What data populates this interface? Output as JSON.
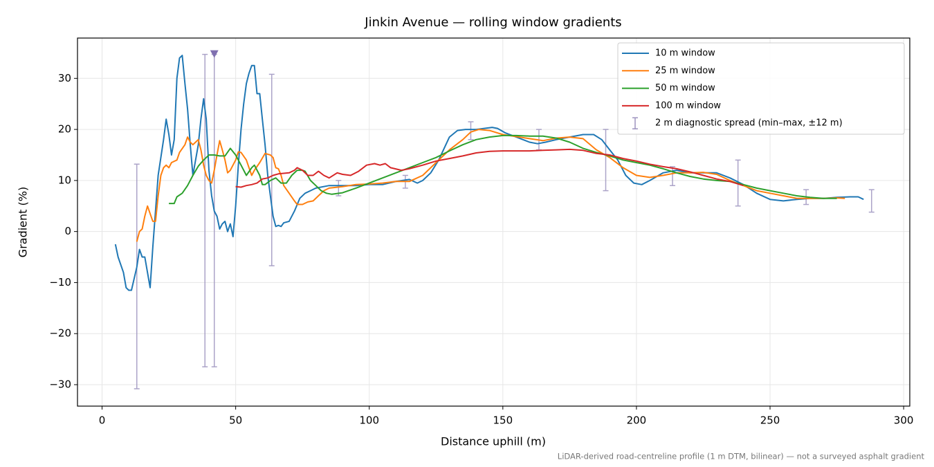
{
  "chart_data": {
    "type": "line",
    "title": "Jinkin Avenue — rolling window gradients",
    "xlabel": "Distance uphill (m)",
    "ylabel": "Gradient (%)",
    "note": "LiDAR-derived road-centreline profile (1 m DTM, bilinear) — not a surveyed asphalt gradient",
    "xlim": [
      -9.2,
      302.3
    ],
    "ylim": [
      -34.2,
      37.9
    ],
    "xticks": [
      0,
      50,
      100,
      150,
      200,
      250,
      300
    ],
    "yticks": [
      {
        "value": -30,
        "label": "−30"
      },
      {
        "value": -20,
        "label": "−20"
      },
      {
        "value": -10,
        "label": "−10"
      },
      0,
      10,
      20,
      30
    ],
    "grid": true,
    "legend": "upper right",
    "series": [
      {
        "name": "10 m window",
        "color": "#1f77b4",
        "x": [
          5,
          6,
          8,
          9,
          10,
          11,
          13,
          14,
          15,
          16,
          18,
          19,
          21,
          23,
          24,
          25,
          26,
          27,
          28,
          29,
          30,
          31,
          32,
          33,
          34,
          36,
          37,
          38,
          39,
          40,
          41,
          42,
          43,
          44,
          45,
          46,
          47,
          48,
          49,
          50,
          51,
          52,
          53,
          54,
          55,
          56,
          57,
          58,
          59,
          60,
          61,
          62,
          63,
          64,
          65,
          66,
          67,
          68,
          70,
          72,
          74,
          76,
          78,
          80,
          85,
          90,
          95,
          100,
          105,
          110,
          115,
          118,
          120,
          123,
          126,
          130,
          133,
          136,
          140,
          143,
          146,
          148,
          151,
          155,
          160,
          163,
          166,
          170,
          175,
          180,
          184,
          187,
          190,
          193,
          196,
          199,
          202,
          205,
          210,
          215,
          220,
          225,
          230,
          235,
          240,
          245,
          250,
          255,
          260,
          265,
          270,
          275,
          280,
          283,
          285
        ],
        "values": [
          -2.5,
          -5,
          -8,
          -11,
          -11.5,
          -11.5,
          -7,
          -3.5,
          -5,
          -5,
          -11,
          -3,
          11,
          18,
          22,
          19,
          15,
          18,
          30,
          34,
          34.5,
          29,
          24,
          17,
          11,
          17,
          22,
          26,
          22,
          12,
          7,
          4,
          3,
          0.5,
          1.5,
          2,
          0,
          1.5,
          -1,
          5,
          13,
          20,
          25,
          29,
          31,
          32.5,
          32.5,
          27,
          27,
          22,
          17,
          11,
          7,
          3,
          1,
          1.2,
          1,
          1.7,
          2,
          4,
          6.5,
          7.5,
          8,
          8.5,
          9,
          9,
          9,
          9.2,
          9.2,
          9.8,
          10.2,
          9.5,
          10,
          11.5,
          14,
          18.5,
          19.8,
          20,
          20,
          20.2,
          20.4,
          20.2,
          19.3,
          18.5,
          17.5,
          17.2,
          17.5,
          18,
          18.5,
          19,
          19,
          18,
          16,
          14,
          11,
          9.5,
          9.2,
          10,
          11.5,
          12,
          11.5,
          11.5,
          11.5,
          10.5,
          9.2,
          7.5,
          6.3,
          6,
          6.3,
          6.5,
          6.5,
          6.7,
          6.8,
          6.8,
          6.3
        ]
      },
      {
        "name": "25 m window",
        "color": "#ff7f0e",
        "x": [
          13,
          14,
          15,
          16,
          17,
          18,
          19,
          20,
          21,
          22,
          23,
          24,
          25,
          26,
          28,
          29,
          31,
          32,
          33,
          34,
          35,
          36,
          37,
          38,
          39,
          40,
          41,
          42,
          43,
          44,
          45,
          46,
          47,
          48,
          50,
          51,
          52,
          54,
          55,
          56,
          57,
          59,
          61,
          63,
          64,
          65,
          66,
          67,
          68,
          70,
          72,
          73,
          75,
          77,
          79,
          81,
          83,
          85,
          90,
          95,
          100,
          105,
          110,
          115,
          120,
          125,
          130,
          135,
          138,
          141,
          145,
          150,
          155,
          160,
          165,
          170,
          175,
          180,
          185,
          190,
          195,
          200,
          205,
          210,
          215,
          220,
          225,
          230,
          235,
          240,
          245,
          250,
          255,
          260,
          265,
          270,
          275,
          278
        ],
        "values": [
          -2,
          0,
          0.5,
          3,
          5,
          3.5,
          2,
          2,
          7,
          11,
          12.5,
          13,
          12.5,
          13.5,
          14,
          15.5,
          17,
          18.5,
          17.5,
          17,
          17.5,
          18,
          16,
          13,
          11,
          10,
          9.5,
          12,
          15,
          17.8,
          16,
          14,
          11.5,
          12,
          14,
          15.6,
          15.5,
          14,
          12.5,
          11,
          12,
          13.5,
          15.3,
          15,
          14.5,
          12.5,
          12.3,
          11,
          9,
          7.5,
          6,
          5.3,
          5.3,
          5.8,
          6,
          7,
          8,
          8.5,
          8.8,
          9.2,
          9.3,
          9.5,
          9.8,
          9.8,
          11,
          13.5,
          16,
          18,
          19.5,
          20,
          19.8,
          19,
          18.6,
          18.2,
          17.8,
          18.3,
          18.5,
          18.2,
          16,
          14.5,
          12.5,
          11,
          10.6,
          11,
          11.5,
          11.5,
          11.6,
          11.2,
          10,
          9,
          8,
          7.5,
          7,
          6.5,
          6.5,
          6.5,
          6.6,
          6.5
        ]
      },
      {
        "name": "50 m window",
        "color": "#2ca02c",
        "x": [
          25,
          27,
          28,
          30,
          32,
          34,
          36,
          38,
          40,
          42,
          44,
          46,
          48,
          50,
          52,
          54,
          56,
          57,
          59,
          60,
          61,
          63,
          65,
          67,
          69,
          71,
          73,
          75,
          76,
          78,
          80,
          82,
          84,
          86,
          90,
          95,
          100,
          105,
          110,
          115,
          120,
          125,
          130,
          135,
          140,
          145,
          150,
          155,
          160,
          165,
          170,
          175,
          180,
          185,
          190,
          195,
          200,
          205,
          210,
          215,
          220,
          225,
          230,
          235,
          240,
          245,
          250,
          255,
          260,
          265,
          270,
          275
        ],
        "values": [
          5.5,
          5.5,
          6.8,
          7.5,
          9,
          11,
          12.8,
          14,
          15,
          15,
          14.8,
          14.8,
          16.3,
          15,
          13,
          11,
          12.5,
          13,
          11,
          9.2,
          9.2,
          10,
          10.5,
          9.5,
          9.5,
          11,
          12,
          12,
          11.8,
          10,
          9,
          8,
          7.5,
          7.3,
          7.6,
          8.5,
          9.5,
          10.5,
          11.5,
          12.5,
          13.5,
          14.5,
          15.8,
          17,
          18,
          18.5,
          18.8,
          18.8,
          18.7,
          18.7,
          18.3,
          17.5,
          16.3,
          15.5,
          14.8,
          14,
          13.5,
          13,
          12.3,
          11.5,
          10.8,
          10.3,
          10,
          9.8,
          9.2,
          8.5,
          8,
          7.5,
          7,
          6.7,
          6.5,
          6.5
        ]
      },
      {
        "name": "100 m window",
        "color": "#d62728",
        "x": [
          50,
          52,
          54,
          56,
          58,
          60,
          62,
          64,
          66,
          70,
          72,
          73,
          75,
          77,
          79,
          81,
          83,
          85,
          88,
          90,
          93,
          96,
          99,
          102,
          104,
          106,
          108,
          112,
          115,
          120,
          125,
          130,
          135,
          140,
          145,
          150,
          155,
          160,
          165,
          170,
          175,
          180,
          185,
          190,
          195,
          200,
          205,
          210,
          215,
          220,
          225,
          230,
          235,
          240
        ],
        "values": [
          8.8,
          8.7,
          9,
          9.2,
          9.5,
          10.3,
          10.5,
          11,
          11.3,
          11.5,
          12,
          12.5,
          12,
          11,
          11,
          11.8,
          11,
          10.5,
          11.5,
          11.2,
          11,
          11.8,
          13,
          13.3,
          13,
          13.3,
          12.5,
          12,
          12.3,
          13,
          13.8,
          14.3,
          14.8,
          15.4,
          15.7,
          15.8,
          15.8,
          15.8,
          15.9,
          16,
          16.1,
          15.9,
          15.3,
          15,
          14.3,
          13.8,
          13.2,
          12.7,
          12.3,
          11.7,
          11,
          10.3,
          9.8,
          9
        ]
      }
    ],
    "errorbars": {
      "name": "2 m diagnostic spread (min–max, ±12 m)",
      "color": "#9d93bf",
      "x": [
        13,
        38.5,
        42,
        63.5,
        88.5,
        113.5,
        138,
        163.5,
        188.5,
        213.5,
        238,
        263.5,
        288
      ],
      "low": [
        -30.8,
        -26.5,
        -26.5,
        -6.7,
        7,
        8.5,
        18,
        16,
        8,
        9,
        5,
        5.3,
        3.8
      ],
      "high": [
        13.2,
        34.7,
        34.7,
        30.8,
        10,
        11,
        21.5,
        20,
        20,
        12.7,
        14,
        8.2,
        8.2
      ]
    },
    "marker": {
      "x": 42,
      "y": 34.7,
      "color": "#8070b0"
    }
  }
}
